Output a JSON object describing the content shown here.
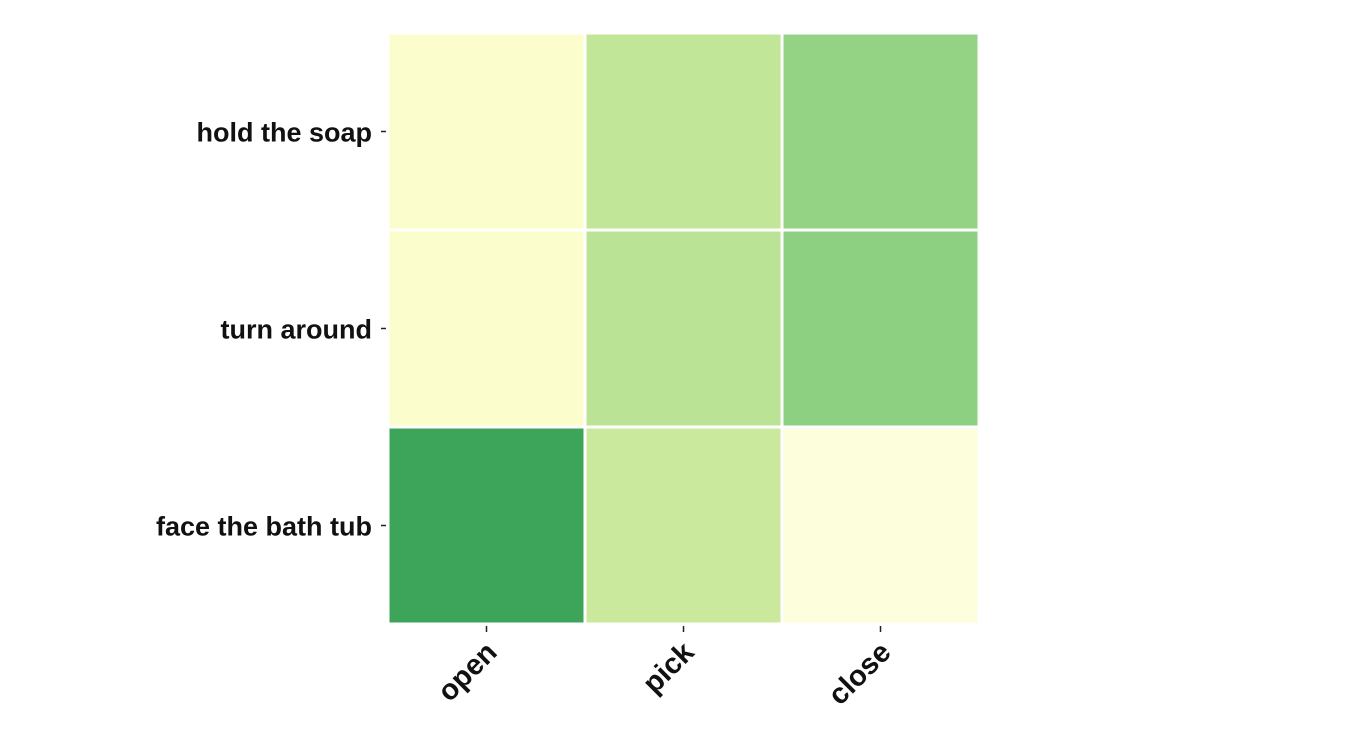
{
  "chart_data": {
    "type": "heatmap",
    "title": "",
    "xlabel": "",
    "ylabel": "",
    "x": [
      "open",
      "pick",
      "close"
    ],
    "y": [
      "hold the soap",
      "turn around",
      "face the bath tub"
    ],
    "values": [
      [
        0.1,
        0.45,
        0.62
      ],
      [
        0.1,
        0.48,
        0.64
      ],
      [
        0.92,
        0.42,
        0.04
      ]
    ],
    "colormap": "YlGn",
    "grid": false,
    "legend": "none"
  }
}
